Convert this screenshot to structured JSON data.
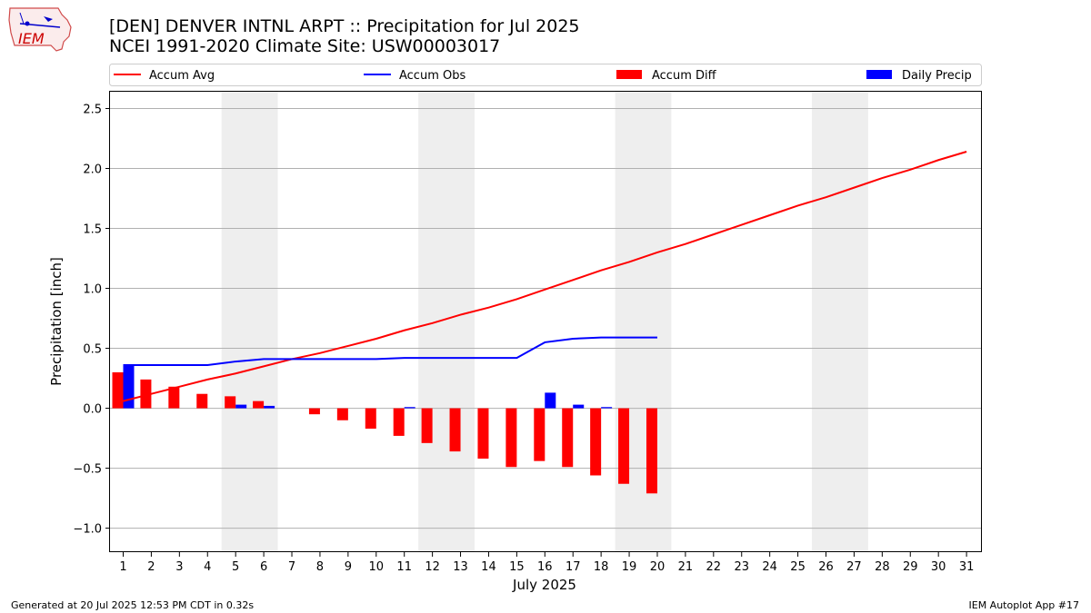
{
  "header": {
    "title_line1": "[DEN] DENVER INTNL ARPT :: Precipitation for Jul 2025",
    "title_line2": "NCEI 1991-2020 Climate Site: USW00003017",
    "logo_text": "IEM"
  },
  "footer": {
    "generated": "Generated at 20 Jul 2025 12:53 PM CDT in 0.32s",
    "app": "IEM Autoplot App #17"
  },
  "chart_data": {
    "type": "bar",
    "xlabel": "July 2025",
    "ylabel": "Precipitation [inch]",
    "ylim": [
      -1.2,
      2.64
    ],
    "yticks": [
      -1.0,
      -0.5,
      0.0,
      0.5,
      1.0,
      1.5,
      2.0,
      2.5
    ],
    "ytick_labels": [
      "−1.0",
      "−0.5",
      "0.0",
      "0.5",
      "1.0",
      "1.5",
      "2.0",
      "2.5"
    ],
    "grid": "horizontal",
    "legend_placement": "top",
    "days": [
      1,
      2,
      3,
      4,
      5,
      6,
      7,
      8,
      9,
      10,
      11,
      12,
      13,
      14,
      15,
      16,
      17,
      18,
      19,
      20,
      21,
      22,
      23,
      24,
      25,
      26,
      27,
      28,
      29,
      30,
      31
    ],
    "weekend_shading": [
      [
        5,
        6
      ],
      [
        12,
        13
      ],
      [
        19,
        20
      ],
      [
        26,
        27
      ]
    ],
    "colors": {
      "avg": "#ff0000",
      "obs": "#0000ff",
      "diff": "#ff0000",
      "daily": "#0000ff",
      "shade": "#eeeeee",
      "grid": "#b0b0b0"
    },
    "legend": [
      {
        "key": "avg",
        "label": "Accum Avg",
        "kind": "line"
      },
      {
        "key": "obs",
        "label": "Accum Obs",
        "kind": "line"
      },
      {
        "key": "diff",
        "label": "Accum Diff",
        "kind": "bar"
      },
      {
        "key": "daily",
        "label": "Daily Precip",
        "kind": "bar"
      }
    ],
    "series": [
      {
        "name": "Accum Avg",
        "kind": "line",
        "values": [
          0.06,
          0.12,
          0.18,
          0.24,
          0.29,
          0.35,
          0.41,
          0.46,
          0.52,
          0.58,
          0.65,
          0.71,
          0.78,
          0.84,
          0.91,
          0.99,
          1.07,
          1.15,
          1.22,
          1.3,
          1.37,
          1.45,
          1.53,
          1.61,
          1.69,
          1.76,
          1.84,
          1.92,
          1.99,
          2.07,
          2.14
        ]
      },
      {
        "name": "Accum Obs",
        "kind": "line",
        "values": [
          0.36,
          0.36,
          0.36,
          0.36,
          0.39,
          0.41,
          0.41,
          0.41,
          0.41,
          0.41,
          0.42,
          0.42,
          0.42,
          0.42,
          0.42,
          0.55,
          0.58,
          0.59,
          0.59,
          0.59
        ]
      },
      {
        "name": "Accum Diff",
        "kind": "bar",
        "values": [
          0.3,
          0.24,
          0.18,
          0.12,
          0.1,
          0.06,
          0.0,
          -0.05,
          -0.1,
          -0.17,
          -0.23,
          -0.29,
          -0.36,
          -0.42,
          -0.49,
          -0.44,
          -0.49,
          -0.56,
          -0.63,
          -0.71
        ]
      },
      {
        "name": "Daily Precip",
        "kind": "bar",
        "values": [
          0.36,
          0.0,
          0.0,
          0.0,
          0.03,
          0.02,
          0.0,
          0.0,
          0.0,
          0.0,
          0.01,
          0.0,
          0.0,
          0.0,
          0.0,
          0.13,
          0.03,
          0.01,
          0.0,
          0.0
        ]
      }
    ]
  }
}
